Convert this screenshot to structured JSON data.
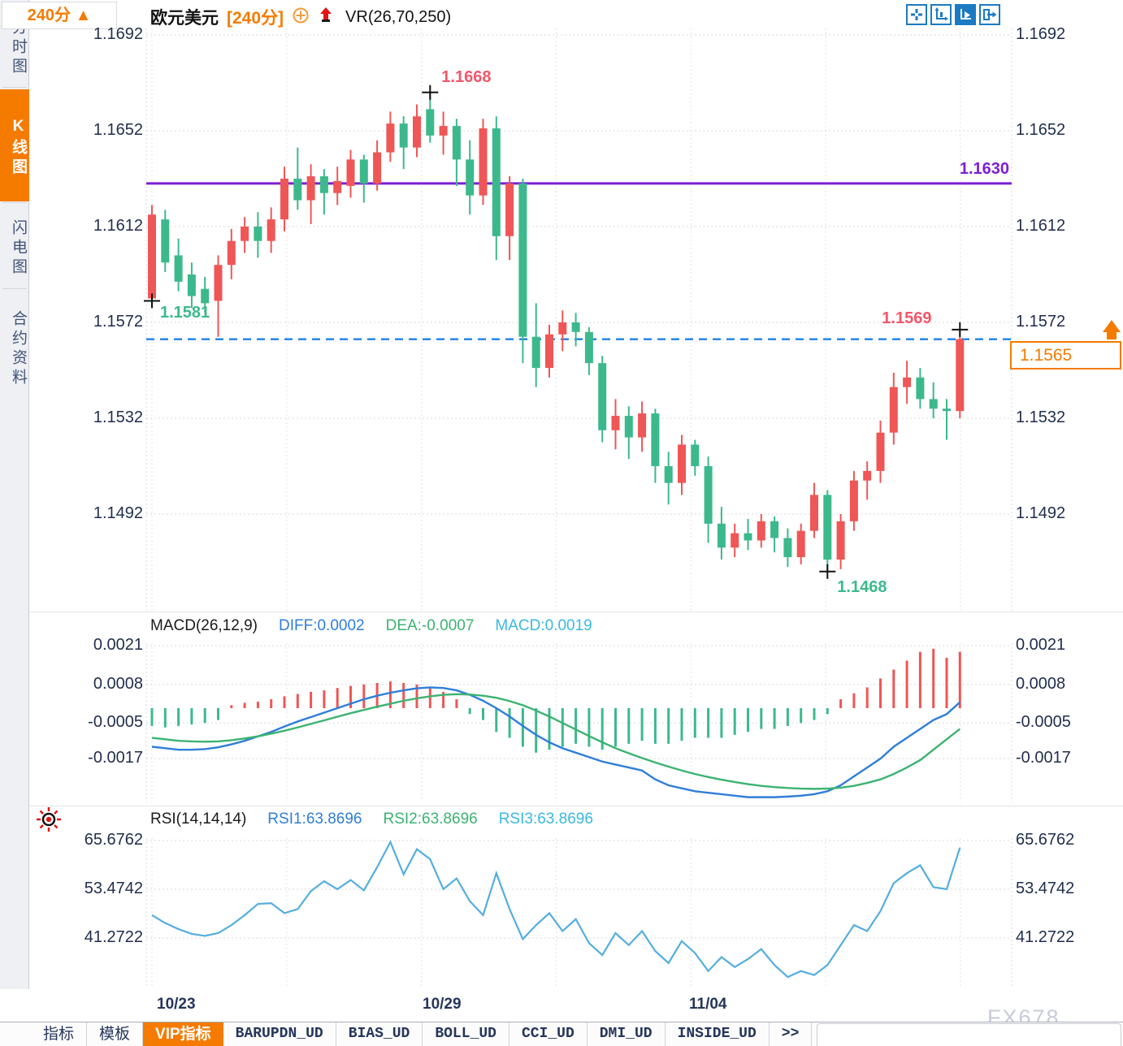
{
  "sidebar": {
    "items": [
      {
        "label": "分时图",
        "active": false
      },
      {
        "label": "K线图",
        "active": true
      },
      {
        "label": "闪电图",
        "active": false
      },
      {
        "label": "合约资料",
        "active": false
      }
    ]
  },
  "header": {
    "symbol": "欧元美元",
    "period": "[240分]",
    "indicator": "VR(26,70,250)"
  },
  "toolbar": {
    "icons": [
      "pan-crosshair",
      "axis-scale",
      "axis-play-active",
      "exit-chart"
    ]
  },
  "annotations": {
    "purple_level": "1.1630",
    "current_price": "1.1565",
    "high_label": "1.1668",
    "last_high_label": "1.1569",
    "start_low_label": "1.1581",
    "low_label": "1.1468"
  },
  "macd_header": {
    "title": "MACD(26,12,9)",
    "diff": "DIFF:0.0002",
    "dea": "DEA:-0.0007",
    "macd": "MACD:0.0019"
  },
  "rsi_header": {
    "title": "RSI(14,14,14)",
    "rsi1": "RSI1:63.8696",
    "rsi2": "RSI2:63.8696",
    "rsi3": "RSI3:63.8696"
  },
  "xaxis": {
    "labels": [
      "10/23",
      "10/29",
      "11/04"
    ],
    "period_label": "240分",
    "period_arrow": "▲"
  },
  "tabs": [
    {
      "label": "指标",
      "mono": false,
      "active": false
    },
    {
      "label": "模板",
      "mono": false,
      "active": false
    },
    {
      "label": "VIP指标",
      "mono": false,
      "active": true
    },
    {
      "label": "BARUPDN_UD",
      "mono": true,
      "active": false
    },
    {
      "label": "BIAS_UD",
      "mono": true,
      "active": false
    },
    {
      "label": "BOLL_UD",
      "mono": true,
      "active": false
    },
    {
      "label": "CCI_UD",
      "mono": true,
      "active": false
    },
    {
      "label": "DMI_UD",
      "mono": true,
      "active": false
    },
    {
      "label": "INSIDE_UD",
      "mono": true,
      "active": false
    },
    {
      "label": ">>",
      "mono": true,
      "active": false
    }
  ],
  "watermark": "FX678",
  "colors": {
    "up": "#ef5656",
    "down": "#3cb98c",
    "purple": "#7b1fd6",
    "dashed_blue": "#1e80e8",
    "orange": "#f57b00",
    "diff_line": "#2f7ed8",
    "dea_line": "#3cb371",
    "rsi_line": "#54aee0",
    "grid": "#d9d9de",
    "axis_text": "#1f2d4d",
    "label_red": "#f4566a",
    "label_green": "#3cb98c"
  },
  "chart_data": {
    "type": "candlestick",
    "symbol": "欧元美元",
    "period": "240分",
    "price_ticks": [
      1.1692,
      1.1652,
      1.1612,
      1.1572,
      1.1532,
      1.1492
    ],
    "levels": {
      "purple_line": 1.163,
      "current_dashed": 1.1565
    },
    "markers": {
      "start_low": {
        "index": 0,
        "price": 1.1581
      },
      "high": {
        "index": 21,
        "price": 1.1668
      },
      "low": {
        "index": 51,
        "price": 1.1468
      },
      "last_high": {
        "index": 61,
        "price": 1.1569
      }
    },
    "candles_ohlc": [
      [
        1.1582,
        1.1621,
        1.1581,
        1.1617
      ],
      [
        1.1615,
        1.1619,
        1.1593,
        1.1597
      ],
      [
        1.16,
        1.1607,
        1.1585,
        1.1589
      ],
      [
        1.1592,
        1.1597,
        1.1578,
        1.1583
      ],
      [
        1.1586,
        1.1591,
        1.1576,
        1.158
      ],
      [
        1.1581,
        1.16,
        1.1566,
        1.1596
      ],
      [
        1.1596,
        1.1611,
        1.159,
        1.1606
      ],
      [
        1.1606,
        1.1616,
        1.1601,
        1.1612
      ],
      [
        1.1612,
        1.1618,
        1.1599,
        1.1606
      ],
      [
        1.1606,
        1.162,
        1.1601,
        1.1615
      ],
      [
        1.1615,
        1.1637,
        1.161,
        1.1632
      ],
      [
        1.1632,
        1.1645,
        1.1619,
        1.1623
      ],
      [
        1.1623,
        1.1638,
        1.1613,
        1.1633
      ],
      [
        1.1633,
        1.1636,
        1.1617,
        1.1626
      ],
      [
        1.1626,
        1.1637,
        1.1621,
        1.1631
      ],
      [
        1.1629,
        1.1644,
        1.1624,
        1.164
      ],
      [
        1.164,
        1.1642,
        1.1622,
        1.163
      ],
      [
        1.163,
        1.1648,
        1.1627,
        1.1643
      ],
      [
        1.1643,
        1.166,
        1.1639,
        1.1655
      ],
      [
        1.1655,
        1.1658,
        1.1636,
        1.1645
      ],
      [
        1.1645,
        1.1663,
        1.1641,
        1.1658
      ],
      [
        1.1661,
        1.1668,
        1.1647,
        1.165
      ],
      [
        1.165,
        1.166,
        1.1642,
        1.1654
      ],
      [
        1.1654,
        1.1657,
        1.1629,
        1.164
      ],
      [
        1.164,
        1.1648,
        1.1617,
        1.1625
      ],
      [
        1.1625,
        1.1657,
        1.1621,
        1.1653
      ],
      [
        1.1653,
        1.1658,
        1.1598,
        1.1608
      ],
      [
        1.1608,
        1.1633,
        1.1598,
        1.163
      ],
      [
        1.163,
        1.1632,
        1.1555,
        1.1566
      ],
      [
        1.1566,
        1.158,
        1.1545,
        1.1553
      ],
      [
        1.1553,
        1.1571,
        1.1549,
        1.1567
      ],
      [
        1.1567,
        1.1577,
        1.156,
        1.1572
      ],
      [
        1.1572,
        1.1576,
        1.1562,
        1.1568
      ],
      [
        1.1568,
        1.157,
        1.155,
        1.1555
      ],
      [
        1.1555,
        1.1558,
        1.1522,
        1.1527
      ],
      [
        1.1527,
        1.154,
        1.1519,
        1.1533
      ],
      [
        1.1533,
        1.1537,
        1.1515,
        1.1524
      ],
      [
        1.1524,
        1.1539,
        1.1518,
        1.1534
      ],
      [
        1.1534,
        1.1536,
        1.1505,
        1.1512
      ],
      [
        1.1512,
        1.1518,
        1.1496,
        1.1505
      ],
      [
        1.1505,
        1.1525,
        1.15,
        1.1521
      ],
      [
        1.1521,
        1.1523,
        1.1508,
        1.1512
      ],
      [
        1.1512,
        1.1516,
        1.148,
        1.1488
      ],
      [
        1.1488,
        1.1495,
        1.1473,
        1.1478
      ],
      [
        1.1478,
        1.1488,
        1.1474,
        1.1484
      ],
      [
        1.1484,
        1.149,
        1.1477,
        1.1481
      ],
      [
        1.1481,
        1.1492,
        1.1478,
        1.1489
      ],
      [
        1.1489,
        1.1491,
        1.1476,
        1.1482
      ],
      [
        1.1482,
        1.1486,
        1.147,
        1.1474
      ],
      [
        1.1474,
        1.1488,
        1.1471,
        1.1485
      ],
      [
        1.1485,
        1.1505,
        1.1482,
        1.15
      ],
      [
        1.15,
        1.1502,
        1.1468,
        1.1473
      ],
      [
        1.1473,
        1.1492,
        1.1469,
        1.1489
      ],
      [
        1.1489,
        1.151,
        1.1485,
        1.1506
      ],
      [
        1.1506,
        1.1514,
        1.1498,
        1.151
      ],
      [
        1.151,
        1.1531,
        1.1505,
        1.1526
      ],
      [
        1.1526,
        1.1551,
        1.1521,
        1.1545
      ],
      [
        1.1545,
        1.1556,
        1.1538,
        1.1549
      ],
      [
        1.1549,
        1.1553,
        1.1536,
        1.154
      ],
      [
        1.154,
        1.1547,
        1.1532,
        1.1536
      ],
      [
        1.1536,
        1.154,
        1.1523,
        1.1535
      ],
      [
        1.1535,
        1.1569,
        1.1532,
        1.1565
      ]
    ],
    "macd": {
      "params": "26,12,9",
      "ticks": [
        0.0021,
        0.0008,
        -0.0005,
        -0.0017
      ],
      "hist": [
        -0.0006,
        -0.00065,
        -0.0006,
        -0.00055,
        -0.0005,
        -0.0004,
        0.0001,
        0.00018,
        0.00022,
        0.0003,
        0.0004,
        0.00048,
        0.00055,
        0.0006,
        0.00068,
        0.00075,
        0.0008,
        0.00085,
        0.0009,
        0.00085,
        0.0008,
        0.0007,
        0.00055,
        0.0003,
        -0.0002,
        -0.0004,
        -0.0008,
        -0.001,
        -0.0013,
        -0.0015,
        -0.0014,
        -0.0013,
        -0.0012,
        -0.0013,
        -0.0014,
        -0.0013,
        -0.0012,
        -0.0011,
        -0.0012,
        -0.0012,
        -0.0011,
        -0.001,
        -0.001,
        -0.001,
        -0.0009,
        -0.0008,
        -0.0007,
        -0.0007,
        -0.0006,
        -0.0005,
        -0.0004,
        -0.0002,
        0.0003,
        0.0005,
        0.0007,
        0.001,
        0.0013,
        0.0016,
        0.0019,
        0.002,
        0.0017,
        0.0019
      ],
      "diff": [
        -0.0013,
        -0.00135,
        -0.0014,
        -0.0014,
        -0.00138,
        -0.00132,
        -0.00122,
        -0.0011,
        -0.00095,
        -0.0008,
        -0.00062,
        -0.00045,
        -0.0003,
        -0.00015,
        0,
        0.00015,
        0.0003,
        0.00042,
        0.00052,
        0.0006,
        0.00067,
        0.0007,
        0.00068,
        0.0006,
        0.00045,
        0.00025,
        0,
        -0.00028,
        -0.0006,
        -0.0009,
        -0.00115,
        -0.00135,
        -0.0015,
        -0.00165,
        -0.0018,
        -0.0019,
        -0.002,
        -0.0021,
        -0.0024,
        -0.0026,
        -0.0027,
        -0.0028,
        -0.00285,
        -0.0029,
        -0.00295,
        -0.003,
        -0.003,
        -0.003,
        -0.00298,
        -0.00295,
        -0.0029,
        -0.0028,
        -0.0026,
        -0.0023,
        -0.002,
        -0.0017,
        -0.0013,
        -0.001,
        -0.0007,
        -0.0004,
        -0.0002,
        0.0002
      ],
      "dea": [
        -0.001,
        -0.00105,
        -0.0011,
        -0.00112,
        -0.00113,
        -0.00112,
        -0.00108,
        -0.00102,
        -0.00095,
        -0.00086,
        -0.00076,
        -0.00065,
        -0.00053,
        -0.00041,
        -0.00029,
        -0.00017,
        -6e-05,
        5e-05,
        0.00015,
        0.00025,
        0.00033,
        0.0004,
        0.00045,
        0.00047,
        0.00046,
        0.00042,
        0.00035,
        0.00024,
        0.0001,
        -8e-05,
        -0.00028,
        -0.0005,
        -0.00072,
        -0.00094,
        -0.00115,
        -0.00135,
        -0.00152,
        -0.00168,
        -0.00183,
        -0.00197,
        -0.0021,
        -0.00222,
        -0.00232,
        -0.00241,
        -0.00249,
        -0.00256,
        -0.00262,
        -0.00266,
        -0.00269,
        -0.00271,
        -0.00272,
        -0.00271,
        -0.00268,
        -0.00262,
        -0.00252,
        -0.0024,
        -0.00222,
        -0.002,
        -0.00175,
        -0.0014,
        -0.00105,
        -0.0007
      ]
    },
    "rsi": {
      "params": "14,14,14",
      "ticks": [
        65.6762,
        53.4742,
        41.2722
      ],
      "values": [
        47,
        45,
        43.5,
        42.3,
        41.8,
        42.5,
        44.5,
        47,
        49.8,
        50,
        47.5,
        48.5,
        53,
        55.5,
        53.5,
        55.8,
        53.2,
        59,
        65.3,
        57.2,
        63.5,
        61,
        53.5,
        56.2,
        50.5,
        47,
        57.5,
        48.5,
        41,
        44.5,
        47.5,
        43,
        46,
        40,
        37,
        42.5,
        39.5,
        43,
        38,
        35,
        40.5,
        37.5,
        33,
        36.5,
        34,
        36,
        38.5,
        34.5,
        31.5,
        33,
        32,
        34.5,
        39.5,
        44.5,
        43,
        48,
        55,
        57.5,
        59.5,
        54,
        53.5,
        63.87
      ]
    }
  }
}
